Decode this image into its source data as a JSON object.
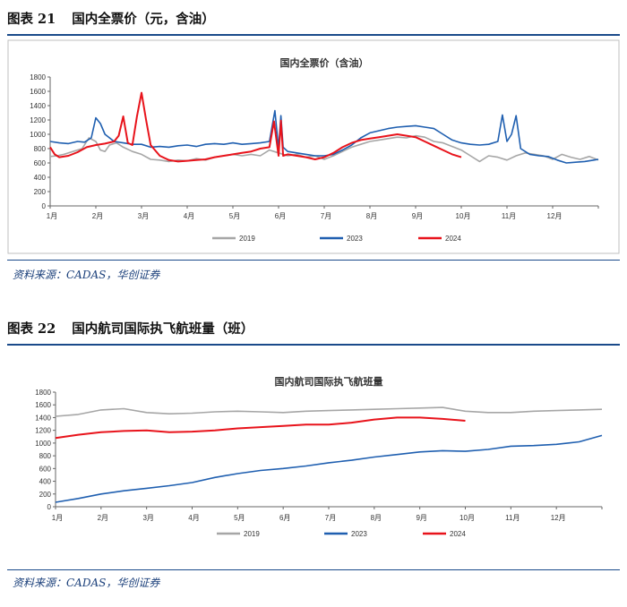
{
  "figures": [
    {
      "label": "图表 21",
      "title": "国内全票价（元，含油）",
      "source": "资料来源：CADAS，华创证券"
    },
    {
      "label": "图表 22",
      "title": "国内航司国际执飞航班量（班）",
      "source": "资料来源：CADAS，华创证券"
    }
  ],
  "chart_data": [
    {
      "type": "line",
      "title": "国内全票价（含油）",
      "xlabel": "",
      "ylabel": "",
      "x_ticks": [
        "1月",
        "2月",
        "3月",
        "4月",
        "5月",
        "6月",
        "7月",
        "8月",
        "9月",
        "10月",
        "11月",
        "12月"
      ],
      "ylim": [
        0,
        1800
      ],
      "y_ticks": [
        0,
        200,
        400,
        600,
        800,
        1000,
        1200,
        1400,
        1600,
        1800
      ],
      "grid": false,
      "legend": "bottom",
      "series": [
        {
          "name": "2019",
          "color": "#a6a6a6",
          "points": [
            [
              0,
              690
            ],
            [
              0.15,
              700
            ],
            [
              0.3,
              720
            ],
            [
              0.5,
              760
            ],
            [
              0.7,
              800
            ],
            [
              0.85,
              950
            ],
            [
              1,
              900
            ],
            [
              1.1,
              780
            ],
            [
              1.2,
              760
            ],
            [
              1.3,
              850
            ],
            [
              1.45,
              880
            ],
            [
              1.6,
              820
            ],
            [
              1.8,
              760
            ],
            [
              2,
              720
            ],
            [
              2.2,
              650
            ],
            [
              2.4,
              640
            ],
            [
              2.6,
              620
            ],
            [
              2.8,
              640
            ],
            [
              3,
              630
            ],
            [
              3.2,
              660
            ],
            [
              3.4,
              640
            ],
            [
              3.6,
              680
            ],
            [
              3.8,
              700
            ],
            [
              4,
              720
            ],
            [
              4.2,
              700
            ],
            [
              4.4,
              720
            ],
            [
              4.6,
              700
            ],
            [
              4.8,
              780
            ],
            [
              5,
              740
            ],
            [
              5.2,
              700
            ],
            [
              5.4,
              720
            ],
            [
              5.6,
              680
            ],
            [
              5.8,
              700
            ],
            [
              6,
              650
            ],
            [
              6.2,
              700
            ],
            [
              6.4,
              760
            ],
            [
              6.6,
              820
            ],
            [
              6.8,
              860
            ],
            [
              7,
              900
            ],
            [
              7.2,
              920
            ],
            [
              7.4,
              940
            ],
            [
              7.6,
              960
            ],
            [
              7.8,
              950
            ],
            [
              8,
              980
            ],
            [
              8.2,
              960
            ],
            [
              8.4,
              900
            ],
            [
              8.6,
              880
            ],
            [
              8.8,
              830
            ],
            [
              9,
              780
            ],
            [
              9.2,
              700
            ],
            [
              9.4,
              620
            ],
            [
              9.6,
              700
            ],
            [
              9.8,
              680
            ],
            [
              10,
              640
            ],
            [
              10.2,
              700
            ],
            [
              10.4,
              740
            ],
            [
              10.6,
              720
            ],
            [
              10.8,
              700
            ],
            [
              11,
              650
            ],
            [
              11.2,
              720
            ],
            [
              11.4,
              680
            ],
            [
              11.6,
              650
            ],
            [
              11.8,
              690
            ],
            [
              12,
              640
            ]
          ]
        },
        {
          "name": "2023",
          "color": "#1f5fb0",
          "points": [
            [
              0,
              900
            ],
            [
              0.2,
              880
            ],
            [
              0.4,
              870
            ],
            [
              0.6,
              900
            ],
            [
              0.75,
              890
            ],
            [
              0.9,
              950
            ],
            [
              1,
              1230
            ],
            [
              1.1,
              1150
            ],
            [
              1.2,
              1000
            ],
            [
              1.4,
              900
            ],
            [
              1.6,
              880
            ],
            [
              1.8,
              860
            ],
            [
              2,
              860
            ],
            [
              2.2,
              820
            ],
            [
              2.4,
              830
            ],
            [
              2.6,
              820
            ],
            [
              2.8,
              840
            ],
            [
              3,
              850
            ],
            [
              3.2,
              830
            ],
            [
              3.4,
              860
            ],
            [
              3.6,
              870
            ],
            [
              3.8,
              860
            ],
            [
              4,
              880
            ],
            [
              4.2,
              860
            ],
            [
              4.4,
              870
            ],
            [
              4.6,
              880
            ],
            [
              4.8,
              900
            ],
            [
              4.92,
              1330
            ],
            [
              5,
              800
            ],
            [
              5.05,
              1260
            ],
            [
              5.1,
              820
            ],
            [
              5.2,
              760
            ],
            [
              5.4,
              740
            ],
            [
              5.6,
              720
            ],
            [
              5.8,
              700
            ],
            [
              6,
              700
            ],
            [
              6.2,
              720
            ],
            [
              6.4,
              780
            ],
            [
              6.6,
              850
            ],
            [
              6.8,
              950
            ],
            [
              7,
              1020
            ],
            [
              7.2,
              1050
            ],
            [
              7.4,
              1080
            ],
            [
              7.6,
              1100
            ],
            [
              7.8,
              1110
            ],
            [
              8,
              1120
            ],
            [
              8.2,
              1100
            ],
            [
              8.4,
              1080
            ],
            [
              8.6,
              1000
            ],
            [
              8.8,
              920
            ],
            [
              9,
              880
            ],
            [
              9.2,
              860
            ],
            [
              9.4,
              850
            ],
            [
              9.6,
              860
            ],
            [
              9.8,
              900
            ],
            [
              9.9,
              1270
            ],
            [
              10,
              900
            ],
            [
              10.1,
              1000
            ],
            [
              10.2,
              1260
            ],
            [
              10.3,
              800
            ],
            [
              10.5,
              720
            ],
            [
              10.7,
              700
            ],
            [
              10.9,
              690
            ],
            [
              11.1,
              640
            ],
            [
              11.3,
              600
            ],
            [
              11.5,
              610
            ],
            [
              11.7,
              620
            ],
            [
              11.9,
              640
            ],
            [
              12,
              650
            ]
          ]
        },
        {
          "name": "2024",
          "color": "#e8131b",
          "points": [
            [
              0,
              820
            ],
            [
              0.1,
              720
            ],
            [
              0.2,
              680
            ],
            [
              0.4,
              700
            ],
            [
              0.6,
              750
            ],
            [
              0.8,
              820
            ],
            [
              1,
              850
            ],
            [
              1.2,
              870
            ],
            [
              1.4,
              900
            ],
            [
              1.5,
              980
            ],
            [
              1.6,
              1250
            ],
            [
              1.7,
              880
            ],
            [
              1.8,
              850
            ],
            [
              1.9,
              1250
            ],
            [
              2,
              1580
            ],
            [
              2.1,
              1200
            ],
            [
              2.2,
              850
            ],
            [
              2.4,
              700
            ],
            [
              2.6,
              640
            ],
            [
              2.8,
              620
            ],
            [
              3,
              630
            ],
            [
              3.2,
              640
            ],
            [
              3.4,
              650
            ],
            [
              3.6,
              680
            ],
            [
              3.8,
              700
            ],
            [
              4,
              720
            ],
            [
              4.2,
              740
            ],
            [
              4.4,
              760
            ],
            [
              4.6,
              800
            ],
            [
              4.8,
              820
            ],
            [
              4.9,
              1180
            ],
            [
              5,
              700
            ],
            [
              5.05,
              1190
            ],
            [
              5.1,
              700
            ],
            [
              5.2,
              720
            ],
            [
              5.4,
              700
            ],
            [
              5.6,
              680
            ],
            [
              5.8,
              650
            ],
            [
              6,
              680
            ],
            [
              6.2,
              740
            ],
            [
              6.4,
              820
            ],
            [
              6.6,
              880
            ],
            [
              6.8,
              920
            ],
            [
              7,
              940
            ],
            [
              7.2,
              960
            ],
            [
              7.4,
              980
            ],
            [
              7.6,
              1000
            ],
            [
              7.8,
              980
            ],
            [
              8,
              960
            ],
            [
              8.2,
              900
            ],
            [
              8.4,
              840
            ],
            [
              8.6,
              780
            ],
            [
              8.8,
              720
            ],
            [
              9,
              680
            ]
          ]
        }
      ]
    },
    {
      "type": "line",
      "title": "国内航司国际执飞航班量",
      "xlabel": "",
      "ylabel": "",
      "x_ticks": [
        "1月",
        "2月",
        "3月",
        "4月",
        "5月",
        "6月",
        "7月",
        "8月",
        "9月",
        "10月",
        "11月",
        "12月"
      ],
      "ylim": [
        0,
        1800
      ],
      "y_ticks": [
        0,
        200,
        400,
        600,
        800,
        1000,
        1200,
        1400,
        1600,
        1800
      ],
      "grid": false,
      "legend": "bottom",
      "series": [
        {
          "name": "2019",
          "color": "#a6a6a6",
          "points": [
            [
              0,
              1420
            ],
            [
              0.5,
              1450
            ],
            [
              1,
              1520
            ],
            [
              1.5,
              1540
            ],
            [
              2,
              1480
            ],
            [
              2.5,
              1460
            ],
            [
              3,
              1470
            ],
            [
              3.5,
              1490
            ],
            [
              4,
              1500
            ],
            [
              4.5,
              1490
            ],
            [
              5,
              1480
            ],
            [
              5.5,
              1500
            ],
            [
              6,
              1510
            ],
            [
              6.5,
              1520
            ],
            [
              7,
              1530
            ],
            [
              7.5,
              1540
            ],
            [
              8,
              1550
            ],
            [
              8.5,
              1560
            ],
            [
              9,
              1500
            ],
            [
              9.5,
              1480
            ],
            [
              10,
              1480
            ],
            [
              10.5,
              1500
            ],
            [
              11,
              1510
            ],
            [
              11.5,
              1520
            ],
            [
              12,
              1530
            ]
          ]
        },
        {
          "name": "2023",
          "color": "#1f5fb0",
          "points": [
            [
              0,
              70
            ],
            [
              0.5,
              130
            ],
            [
              1,
              200
            ],
            [
              1.5,
              250
            ],
            [
              2,
              290
            ],
            [
              2.5,
              330
            ],
            [
              3,
              380
            ],
            [
              3.5,
              460
            ],
            [
              4,
              520
            ],
            [
              4.5,
              570
            ],
            [
              5,
              600
            ],
            [
              5.5,
              640
            ],
            [
              6,
              690
            ],
            [
              6.5,
              730
            ],
            [
              7,
              780
            ],
            [
              7.5,
              820
            ],
            [
              8,
              860
            ],
            [
              8.5,
              880
            ],
            [
              9,
              870
            ],
            [
              9.5,
              900
            ],
            [
              10,
              950
            ],
            [
              10.5,
              960
            ],
            [
              11,
              980
            ],
            [
              11.5,
              1020
            ],
            [
              12,
              1120
            ]
          ]
        },
        {
          "name": "2024",
          "color": "#e8131b",
          "points": [
            [
              0,
              1080
            ],
            [
              0.5,
              1130
            ],
            [
              1,
              1170
            ],
            [
              1.5,
              1190
            ],
            [
              2,
              1200
            ],
            [
              2.5,
              1170
            ],
            [
              3,
              1180
            ],
            [
              3.5,
              1200
            ],
            [
              4,
              1230
            ],
            [
              4.5,
              1250
            ],
            [
              5,
              1270
            ],
            [
              5.5,
              1290
            ],
            [
              6,
              1290
            ],
            [
              6.5,
              1320
            ],
            [
              7,
              1370
            ],
            [
              7.5,
              1400
            ],
            [
              8,
              1400
            ],
            [
              8.5,
              1380
            ],
            [
              9,
              1350
            ]
          ]
        }
      ]
    }
  ]
}
